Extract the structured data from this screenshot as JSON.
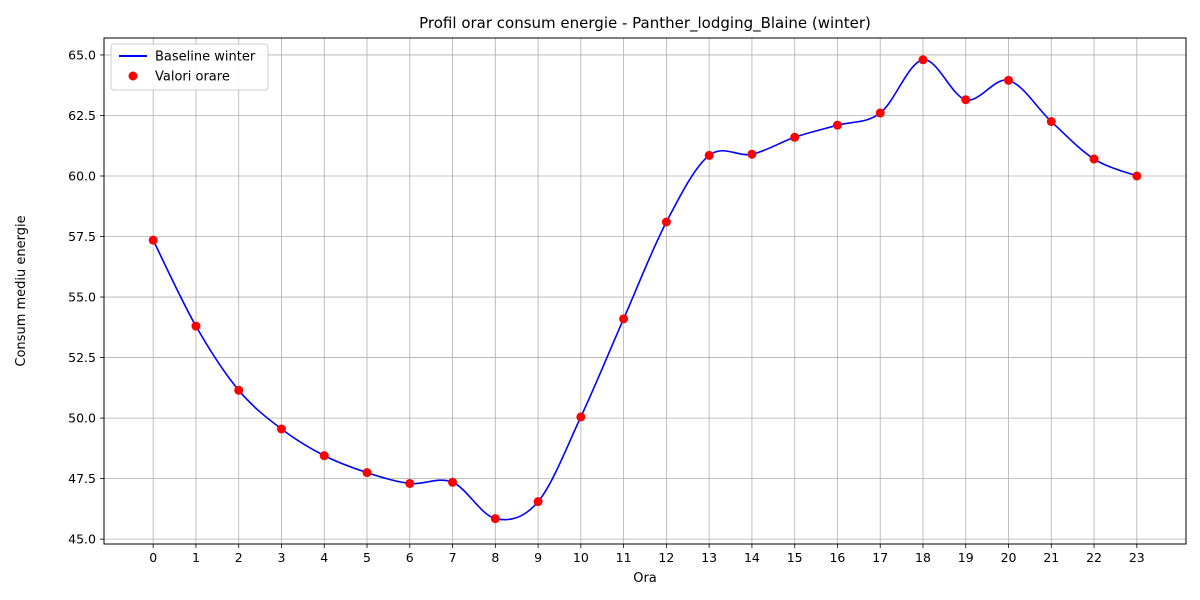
{
  "chart_data": {
    "type": "line",
    "title": "Profil orar consum energie - Panther_lodging_Blaine (winter)",
    "xlabel": "Ora",
    "ylabel": "Consum mediu energie",
    "x": [
      0,
      1,
      2,
      3,
      4,
      5,
      6,
      7,
      8,
      9,
      10,
      11,
      12,
      13,
      14,
      15,
      16,
      17,
      18,
      19,
      20,
      21,
      22,
      23
    ],
    "x_tick_labels": [
      "0",
      "1",
      "2",
      "3",
      "4",
      "5",
      "6",
      "7",
      "8",
      "9",
      "10",
      "11",
      "12",
      "13",
      "14",
      "15",
      "16",
      "17",
      "18",
      "19",
      "20",
      "21",
      "22",
      "23"
    ],
    "y_ticks": [
      45.0,
      47.5,
      50.0,
      52.5,
      55.0,
      57.5,
      60.0,
      62.5,
      65.0
    ],
    "y_tick_labels": [
      "45.0",
      "47.5",
      "50.0",
      "52.5",
      "55.0",
      "57.5",
      "60.0",
      "62.5",
      "65.0"
    ],
    "xlim": [
      -1.15,
      24.15
    ],
    "ylim": [
      44.8,
      65.7
    ],
    "grid": true,
    "legend_position": "top-left",
    "series": [
      {
        "name": "Baseline winter",
        "kind": "line",
        "color": "#0000ff",
        "values": [
          57.35,
          53.8,
          51.15,
          49.55,
          48.45,
          47.75,
          47.3,
          47.35,
          45.85,
          46.55,
          50.05,
          54.1,
          58.1,
          60.85,
          60.9,
          61.6,
          62.1,
          62.6,
          64.8,
          63.15,
          63.95,
          62.25,
          60.7,
          60.0
        ]
      },
      {
        "name": "Valori orare",
        "kind": "scatter",
        "color": "#ff0000",
        "values": [
          57.35,
          53.8,
          51.15,
          49.55,
          48.45,
          47.75,
          47.3,
          47.35,
          45.85,
          46.55,
          50.05,
          54.1,
          58.1,
          60.85,
          60.9,
          61.6,
          62.1,
          62.6,
          64.8,
          63.15,
          63.95,
          62.25,
          60.7,
          60.0
        ]
      }
    ]
  }
}
